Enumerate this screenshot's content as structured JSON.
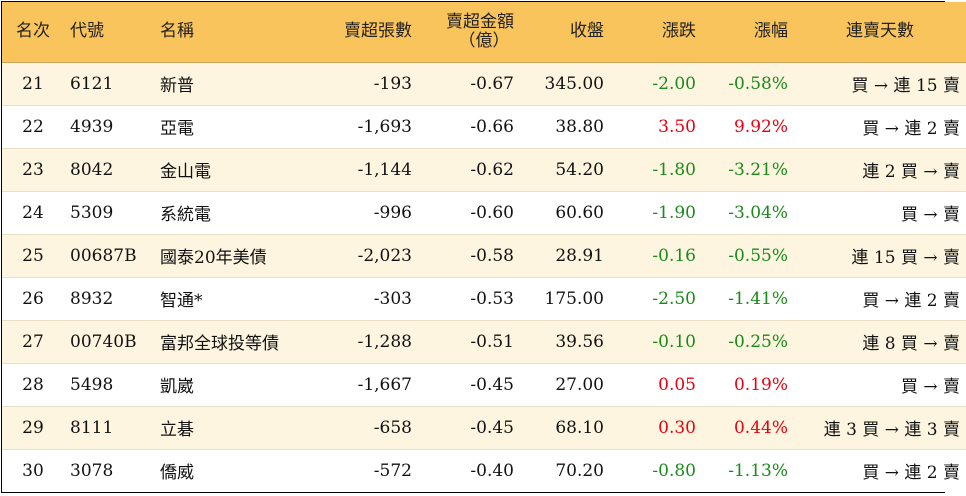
{
  "headers": {
    "rank": "名次",
    "code": "代號",
    "name": "名稱",
    "sell_volume": "賣超張數",
    "sell_amount_line1": "賣超金額",
    "sell_amount_line2": "（億）",
    "close": "收盤",
    "change": "漲跌",
    "change_pct": "漲幅",
    "consecutive": "連賣天數"
  },
  "rows": [
    {
      "rank": "21",
      "code": "6121",
      "name": "新普",
      "sell_volume": "-193",
      "sell_amount": "-0.67",
      "close": "345.00",
      "change": "-2.00",
      "change_pct": "-0.58%",
      "consecutive": "買 → 連 15 賣",
      "direction": "down"
    },
    {
      "rank": "22",
      "code": "4939",
      "name": "亞電",
      "sell_volume": "-1,693",
      "sell_amount": "-0.66",
      "close": "38.80",
      "change": "3.50",
      "change_pct": "9.92%",
      "consecutive": "買 → 連 2 賣",
      "direction": "up"
    },
    {
      "rank": "23",
      "code": "8042",
      "name": "金山電",
      "sell_volume": "-1,144",
      "sell_amount": "-0.62",
      "close": "54.20",
      "change": "-1.80",
      "change_pct": "-3.21%",
      "consecutive": "連 2 買 → 賣",
      "direction": "down"
    },
    {
      "rank": "24",
      "code": "5309",
      "name": "系統電",
      "sell_volume": "-996",
      "sell_amount": "-0.60",
      "close": "60.60",
      "change": "-1.90",
      "change_pct": "-3.04%",
      "consecutive": "買 → 賣",
      "direction": "down"
    },
    {
      "rank": "25",
      "code": "00687B",
      "name": "國泰20年美債",
      "sell_volume": "-2,023",
      "sell_amount": "-0.58",
      "close": "28.91",
      "change": "-0.16",
      "change_pct": "-0.55%",
      "consecutive": "連 15 買 → 賣",
      "direction": "down"
    },
    {
      "rank": "26",
      "code": "8932",
      "name": "智通*",
      "sell_volume": "-303",
      "sell_amount": "-0.53",
      "close": "175.00",
      "change": "-2.50",
      "change_pct": "-1.41%",
      "consecutive": "買 → 連 2 賣",
      "direction": "down"
    },
    {
      "rank": "27",
      "code": "00740B",
      "name": "富邦全球投等債",
      "sell_volume": "-1,288",
      "sell_amount": "-0.51",
      "close": "39.56",
      "change": "-0.10",
      "change_pct": "-0.25%",
      "consecutive": "連 8 買 → 賣",
      "direction": "down"
    },
    {
      "rank": "28",
      "code": "5498",
      "name": "凱崴",
      "sell_volume": "-1,667",
      "sell_amount": "-0.45",
      "close": "27.00",
      "change": "0.05",
      "change_pct": "0.19%",
      "consecutive": "買 → 賣",
      "direction": "up"
    },
    {
      "rank": "29",
      "code": "8111",
      "name": "立碁",
      "sell_volume": "-658",
      "sell_amount": "-0.45",
      "close": "68.10",
      "change": "0.30",
      "change_pct": "0.44%",
      "consecutive": "連 3 買 → 連 3 賣",
      "direction": "up"
    },
    {
      "rank": "30",
      "code": "3078",
      "name": "僑威",
      "sell_volume": "-572",
      "sell_amount": "-0.40",
      "close": "70.20",
      "change": "-0.80",
      "change_pct": "-1.13%",
      "consecutive": "買 → 連 2 賣",
      "direction": "down"
    }
  ],
  "colors": {
    "header_bg": "#f9c45c",
    "odd_row_bg": "#fdf5df",
    "up": "#e60012",
    "down": "#1a8a1a"
  }
}
